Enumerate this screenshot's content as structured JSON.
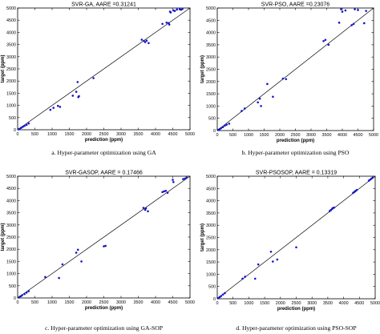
{
  "chart_data": [
    {
      "type": "scatter",
      "title": "SVR-GA, AARE =0.31241",
      "xlabel": "prediction (ppm)",
      "ylabel": "target (ppm)",
      "caption": "a. Hyper-parameter optimization using GA",
      "xlim": [
        0,
        5000
      ],
      "ylim": [
        0,
        5000
      ],
      "xticks": [
        0,
        500,
        1000,
        1500,
        2000,
        2500,
        3000,
        3500,
        4000,
        4500,
        5000
      ],
      "yticks": [
        0,
        500,
        1000,
        1500,
        2000,
        2500,
        3000,
        3500,
        4000,
        4500,
        5000
      ],
      "reference_line": "y = x",
      "marker_color": "#1414c8",
      "x": [
        30,
        60,
        100,
        150,
        200,
        260,
        320,
        950,
        1040,
        1170,
        1230,
        1600,
        1700,
        1740,
        1760,
        1780,
        2200,
        3600,
        3660,
        3700,
        3740,
        3800,
        4200,
        4320,
        4380,
        4400,
        4420,
        4440,
        4520,
        4560,
        4620,
        4700,
        4740,
        4780
      ],
      "y": [
        20,
        40,
        80,
        120,
        160,
        200,
        260,
        820,
        900,
        980,
        940,
        1400,
        1560,
        1960,
        1340,
        1380,
        2120,
        3700,
        3650,
        3600,
        3660,
        3560,
        4350,
        4400,
        4380,
        4320,
        4850,
        4820,
        4900,
        4880,
        4940,
        4950,
        4930,
        4960
      ]
    },
    {
      "type": "scatter",
      "title": "SVR-PSO, AARE =0.23076",
      "xlabel": "prediction (ppm)",
      "ylabel": "target (ppm)",
      "caption": "b. Hyper-parameter optimization using PSO",
      "xlim": [
        0,
        5000
      ],
      "ylim": [
        0,
        5000
      ],
      "xticks": [
        0,
        500,
        1000,
        1500,
        2000,
        2500,
        3000,
        3500,
        4000,
        4500,
        5000
      ],
      "yticks": [
        0,
        500,
        1000,
        1500,
        2000,
        2500,
        3000,
        3500,
        4000,
        4500,
        5000
      ],
      "reference_line": "y = x",
      "marker_color": "#1414c8",
      "x": [
        40,
        80,
        120,
        180,
        240,
        300,
        380,
        780,
        880,
        1300,
        1360,
        1400,
        1600,
        1780,
        2100,
        2200,
        3400,
        3460,
        3560,
        3900,
        3960,
        4000,
        4100,
        4300,
        4360,
        4400,
        4500,
        4700,
        4760
      ],
      "y": [
        30,
        60,
        100,
        140,
        200,
        240,
        280,
        800,
        900,
        1150,
        1300,
        1000,
        1900,
        1380,
        2120,
        2100,
        3650,
        3700,
        3500,
        4400,
        4950,
        4850,
        4900,
        4300,
        4350,
        4950,
        4920,
        4380,
        4880
      ]
    },
    {
      "type": "scatter",
      "title": "SVR-GASOP, AARE = 0.17466",
      "xlabel": "prediction (ppm)",
      "ylabel": "target (ppm)",
      "caption": "c. Hyper-parameter optimization using GA-SOP",
      "xlim": [
        0,
        5000
      ],
      "ylim": [
        0,
        5000
      ],
      "xticks": [
        0,
        500,
        1000,
        1500,
        2000,
        2500,
        3000,
        3500,
        4000,
        4500,
        5000
      ],
      "yticks": [
        0,
        500,
        1000,
        1500,
        2000,
        2500,
        3000,
        3500,
        4000,
        4500,
        5000
      ],
      "reference_line": "y = x",
      "marker_color": "#1414c8",
      "x": [
        50,
        90,
        130,
        200,
        260,
        320,
        800,
        1200,
        1300,
        1700,
        1750,
        1850,
        2500,
        2550,
        3650,
        3700,
        3720,
        3780,
        4200,
        4250,
        4300,
        4350,
        4500,
        4520,
        4800,
        4850,
        4900
      ],
      "y": [
        40,
        70,
        110,
        160,
        220,
        280,
        860,
        820,
        1380,
        1860,
        1980,
        1500,
        2120,
        2140,
        3700,
        3620,
        3680,
        3560,
        4350,
        4380,
        4400,
        4320,
        4850,
        4760,
        4880,
        4900,
        4950
      ]
    },
    {
      "type": "scatter",
      "title": "SVR-PSOSOP, AARE = 0.13319",
      "xlabel": "prediction (ppm)",
      "ylabel": "target (ppm)",
      "caption": "d. Hyper-parameter optimization using PSO-SOP",
      "xlim": [
        0,
        5000
      ],
      "ylim": [
        0,
        5000
      ],
      "xticks": [
        0,
        500,
        1000,
        1500,
        2000,
        2500,
        3000,
        3500,
        4000,
        4500,
        5000
      ],
      "yticks": [
        0,
        500,
        1000,
        1500,
        2000,
        2500,
        3000,
        3500,
        4000,
        4500,
        5000
      ],
      "reference_line": "y = x",
      "marker_color": "#1414c8",
      "x": [
        40,
        80,
        120,
        180,
        240,
        800,
        880,
        1200,
        1300,
        1700,
        1760,
        1900,
        2500,
        3560,
        3600,
        3640,
        3660,
        3700,
        4300,
        4340,
        4380,
        4420,
        4800,
        4840,
        4880,
        4920
      ],
      "y": [
        30,
        70,
        110,
        170,
        230,
        820,
        900,
        820,
        1400,
        1920,
        1520,
        1600,
        2100,
        3580,
        3620,
        3680,
        3700,
        3720,
        4320,
        4360,
        4400,
        4440,
        4820,
        4860,
        4900,
        4940
      ]
    }
  ]
}
